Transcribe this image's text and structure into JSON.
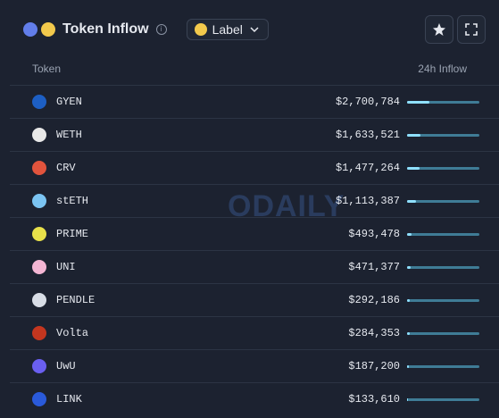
{
  "header": {
    "title": "Token Inflow",
    "label_button": "Label"
  },
  "watermark": "ODAILY",
  "table": {
    "columns": [
      "Token",
      "24h Inflow"
    ],
    "rows": [
      {
        "token": "GYEN",
        "inflow": 2700784,
        "inflow_label": "$2,700,784",
        "color": "#1d5fc4"
      },
      {
        "token": "WETH",
        "inflow": 1633521,
        "inflow_label": "$1,633,521",
        "color": "#e8e8e8"
      },
      {
        "token": "CRV",
        "inflow": 1477264,
        "inflow_label": "$1,477,264",
        "color": "#e2543d"
      },
      {
        "token": "stETH",
        "inflow": 1113387,
        "inflow_label": "$1,113,387",
        "color": "#7bc4f2"
      },
      {
        "token": "PRIME",
        "inflow": 493478,
        "inflow_label": "$493,478",
        "color": "#e8e14a"
      },
      {
        "token": "UNI",
        "inflow": 471377,
        "inflow_label": "$471,377",
        "color": "#f4b6d4"
      },
      {
        "token": "PENDLE",
        "inflow": 292186,
        "inflow_label": "$292,186",
        "color": "#d8dde6"
      },
      {
        "token": "Volta",
        "inflow": 284353,
        "inflow_label": "$284,353",
        "color": "#c4361f"
      },
      {
        "token": "UwU",
        "inflow": 187200,
        "inflow_label": "$187,200",
        "color": "#6a5ff0"
      },
      {
        "token": "LINK",
        "inflow": 133610,
        "inflow_label": "$133,610",
        "color": "#2a5ada"
      }
    ]
  }
}
